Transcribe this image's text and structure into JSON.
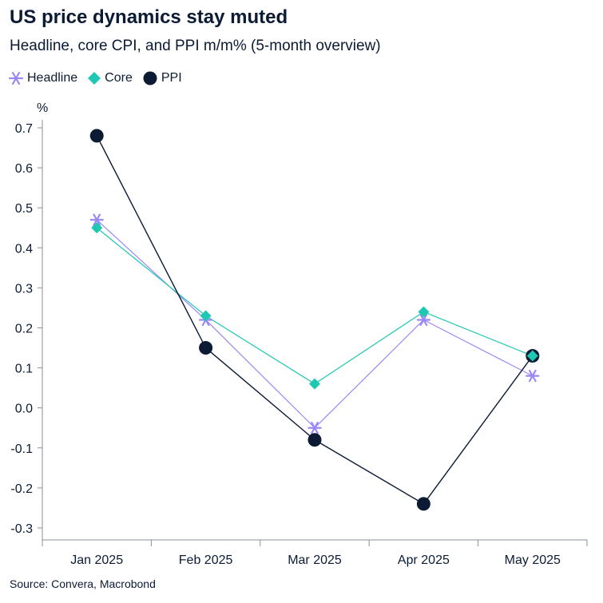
{
  "colors": {
    "headline": "#9b87f5",
    "core": "#1fc8b2",
    "ppi": "#0b1b34",
    "axis": "#8a8f99",
    "text": "#0b1b34"
  },
  "chart_data": {
    "type": "line",
    "title": "US price dynamics stay muted",
    "subtitle": "Headline, core CPI, and PPI m/m% (5-month overview)",
    "ylabel": "%",
    "xlabel": "",
    "categories": [
      "Jan 2025",
      "Feb 2025",
      "Mar 2025",
      "Apr 2025",
      "May 2025"
    ],
    "ylim": [
      -0.33,
      0.72
    ],
    "yticks": [
      -0.3,
      -0.2,
      -0.1,
      0.0,
      0.1,
      0.2,
      0.3,
      0.4,
      0.5,
      0.6,
      0.7
    ],
    "ytick_labels": [
      "-0.3",
      "-0.2",
      "-0.1",
      "0.0",
      "0.1",
      "0.2",
      "0.3",
      "0.4",
      "0.5",
      "0.6",
      "0.7"
    ],
    "grid": false,
    "legend_position": "top-left",
    "series": [
      {
        "key": "headline",
        "name": "Headline",
        "marker": "asterisk",
        "values": [
          0.47,
          0.22,
          -0.05,
          0.22,
          0.08
        ]
      },
      {
        "key": "core",
        "name": "Core",
        "marker": "diamond",
        "values": [
          0.45,
          0.23,
          0.06,
          0.24,
          0.13
        ]
      },
      {
        "key": "ppi",
        "name": "PPI",
        "marker": "circle",
        "values": [
          0.68,
          0.15,
          -0.08,
          -0.24,
          0.13
        ]
      }
    ],
    "source": "Source: Convera, Macrobond"
  }
}
